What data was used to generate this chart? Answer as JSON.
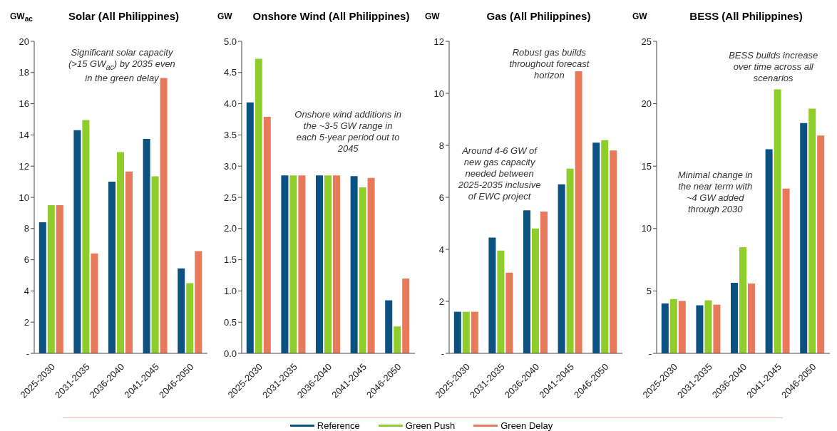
{
  "chart_data": [
    {
      "type": "bar",
      "title": "Solar (All Philippines)",
      "ylabel": "GW$_{ac}$",
      "categories": [
        "2025-2030",
        "2031-2035",
        "2036-2040",
        "2041-2045",
        "2046-2050"
      ],
      "series": [
        {
          "name": "Reference",
          "color": "#0b5282",
          "values": [
            8.4,
            14.3,
            11.0,
            13.75,
            5.45
          ]
        },
        {
          "name": "Green Push",
          "color": "#8fce2a",
          "values": [
            9.5,
            14.95,
            12.9,
            11.35,
            4.5
          ]
        },
        {
          "name": "Green Delay",
          "color": "#e8795a",
          "values": [
            9.5,
            6.4,
            11.65,
            17.65,
            6.55
          ]
        }
      ],
      "ylim": [
        0,
        20
      ],
      "yticks": [
        {
          "value": 0,
          "label": "-"
        },
        2,
        4,
        6,
        8,
        10,
        12,
        14,
        16,
        18,
        20
      ],
      "grid": false,
      "legend": "bottom",
      "annotations": [
        "Significant solar capacity (>15 GW$_{ac}$) by 2035 even in the green delay"
      ]
    },
    {
      "type": "bar",
      "title": "Onshore Wind (All Philippines)",
      "ylabel": "GW",
      "categories": [
        "2025-2030",
        "2031-2035",
        "2036-2040",
        "2041-2045",
        "2046-2050"
      ],
      "series": [
        {
          "name": "Reference",
          "color": "#0b5282",
          "values": [
            4.02,
            2.85,
            2.85,
            2.84,
            0.85
          ]
        },
        {
          "name": "Green Push",
          "color": "#8fce2a",
          "values": [
            4.72,
            2.85,
            2.85,
            2.66,
            0.43
          ]
        },
        {
          "name": "Green Delay",
          "color": "#e8795a",
          "values": [
            3.79,
            2.85,
            2.85,
            2.81,
            1.2
          ]
        }
      ],
      "ylim": [
        0,
        5
      ],
      "yticks": [
        {
          "value": 0,
          "label": "0.0"
        },
        {
          "value": 0.5,
          "label": "0.5"
        },
        {
          "value": 1,
          "label": "1.0"
        },
        {
          "value": 1.5,
          "label": "1.5"
        },
        {
          "value": 2,
          "label": "2.0"
        },
        {
          "value": 2.5,
          "label": "2.5"
        },
        {
          "value": 3,
          "label": "3.0"
        },
        {
          "value": 3.5,
          "label": "3.5"
        },
        {
          "value": 4,
          "label": "4.0"
        },
        {
          "value": 4.5,
          "label": "4.5"
        },
        {
          "value": 5,
          "label": "5.0"
        }
      ],
      "grid": false,
      "legend": "bottom",
      "annotations": [
        "Onshore wind additions in the ~3-5 GW range in each 5-year period out to 2045"
      ]
    },
    {
      "type": "bar",
      "title": "Gas (All Philippines)",
      "ylabel": "GW",
      "categories": [
        "2025-2030",
        "2031-2035",
        "2036-2040",
        "2041-2045",
        "2046-2050"
      ],
      "series": [
        {
          "name": "Reference",
          "color": "#0b5282",
          "values": [
            1.6,
            4.45,
            5.5,
            6.5,
            8.1
          ]
        },
        {
          "name": "Green Push",
          "color": "#8fce2a",
          "values": [
            1.6,
            3.95,
            4.8,
            7.1,
            8.2
          ]
        },
        {
          "name": "Green Delay",
          "color": "#e8795a",
          "values": [
            1.6,
            3.1,
            5.45,
            10.85,
            7.8
          ]
        }
      ],
      "ylim": [
        0,
        12
      ],
      "yticks": [
        {
          "value": 0,
          "label": "-"
        },
        2,
        4,
        6,
        8,
        10,
        12
      ],
      "grid": false,
      "legend": "bottom",
      "annotations": [
        "Around 4-6 GW of new gas capacity needed between 2025-2035 inclusive of EWC project",
        "Robust gas builds throughout forecast horizon"
      ]
    },
    {
      "type": "bar",
      "title": "BESS (All Philippines)",
      "ylabel": "GW",
      "categories": [
        "2025-2030",
        "2031-2035",
        "2036-2040",
        "2041-2045",
        "2046-2050"
      ],
      "series": [
        {
          "name": "Reference",
          "color": "#0b5282",
          "values": [
            4.0,
            3.85,
            5.65,
            16.35,
            18.45
          ]
        },
        {
          "name": "Green Push",
          "color": "#8fce2a",
          "values": [
            4.35,
            4.25,
            8.5,
            21.15,
            19.6
          ]
        },
        {
          "name": "Green Delay",
          "color": "#e8795a",
          "values": [
            4.2,
            3.9,
            5.6,
            13.2,
            17.45
          ]
        }
      ],
      "ylim": [
        0,
        25
      ],
      "yticks": [
        {
          "value": 0,
          "label": "-"
        },
        5,
        10,
        15,
        20,
        25
      ],
      "grid": false,
      "legend": "bottom",
      "annotations": [
        "Minimal change in the near term with ~4 GW added through 2030",
        "BESS builds increase over time across all scenarios"
      ]
    }
  ]
}
